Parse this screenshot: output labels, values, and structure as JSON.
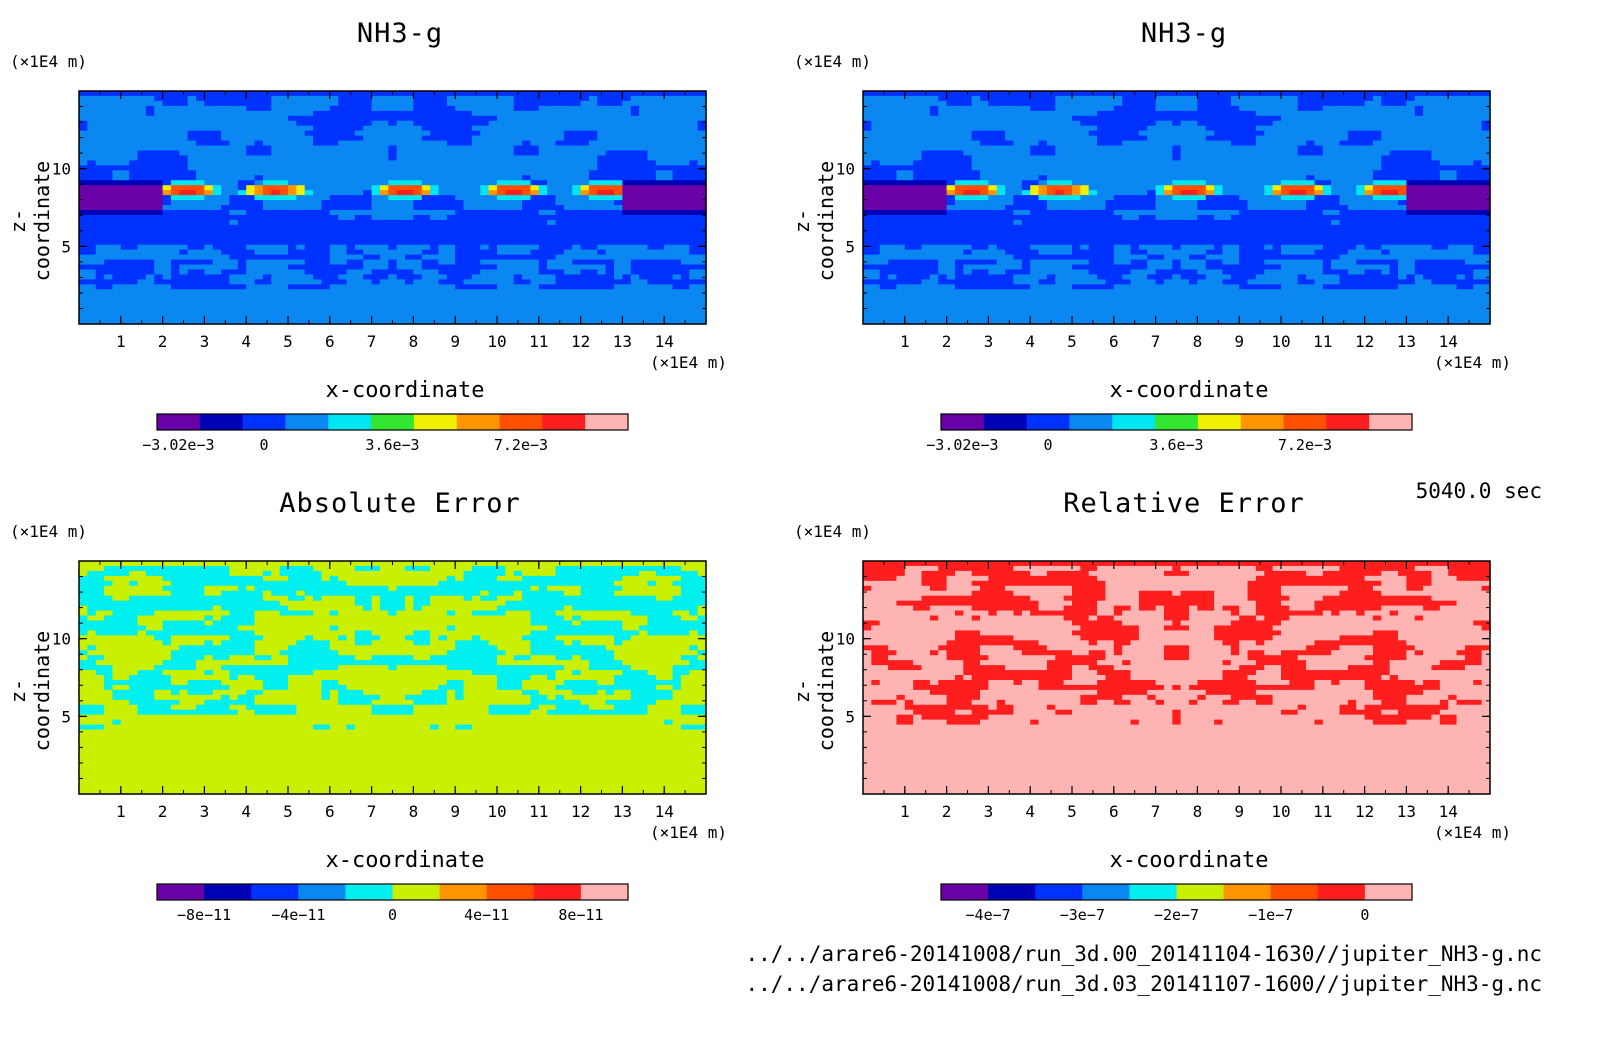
{
  "panels": [
    {
      "title": "NH3-g",
      "xlabel": "x-coordinate",
      "zlabel": "z-coordinate",
      "x_unit": "(×1E4 m)",
      "z_unit": "(×1E4 m)",
      "x_ticks": [
        "1",
        "2",
        "3",
        "4",
        "5",
        "6",
        "7",
        "8",
        "9",
        "10",
        "11",
        "12",
        "13",
        "14"
      ],
      "z_ticks": [
        "5",
        "10"
      ],
      "palette": [
        "#6a00a8",
        "#0000b4",
        "#0032ff",
        "#0a87f0",
        "#00e6f0",
        "#32e632",
        "#f0f000",
        "#ff9600",
        "#ff5000",
        "#ff1e1e",
        "#ffb4b4"
      ],
      "colorbar_labels": [
        "−3.02e−3",
        "0",
        "3.6e−3",
        "7.2e−3"
      ],
      "colorbar_label_slots": [
        0.5,
        2.5,
        5.5,
        8.5
      ],
      "field": "nh3"
    },
    {
      "title": "NH3-g",
      "xlabel": "x-coordinate",
      "zlabel": "z-coordinate",
      "x_unit": "(×1E4 m)",
      "z_unit": "(×1E4 m)",
      "x_ticks": [
        "1",
        "2",
        "3",
        "4",
        "5",
        "6",
        "7",
        "8",
        "9",
        "10",
        "11",
        "12",
        "13",
        "14"
      ],
      "z_ticks": [
        "5",
        "10"
      ],
      "palette": [
        "#6a00a8",
        "#0000b4",
        "#0032ff",
        "#0a87f0",
        "#00e6f0",
        "#32e632",
        "#f0f000",
        "#ff9600",
        "#ff5000",
        "#ff1e1e",
        "#ffb4b4"
      ],
      "colorbar_labels": [
        "−3.02e−3",
        "0",
        "3.6e−3",
        "7.2e−3"
      ],
      "colorbar_label_slots": [
        0.5,
        2.5,
        5.5,
        8.5
      ],
      "field": "nh3"
    },
    {
      "title": "Absolute Error",
      "xlabel": "x-coordinate",
      "zlabel": "z-coordinate",
      "x_unit": "(×1E4 m)",
      "z_unit": "(×1E4 m)",
      "x_ticks": [
        "1",
        "2",
        "3",
        "4",
        "5",
        "6",
        "7",
        "8",
        "9",
        "10",
        "11",
        "12",
        "13",
        "14"
      ],
      "z_ticks": [
        "5",
        "10"
      ],
      "palette": [
        "#6a00a8",
        "#0000b4",
        "#0032ff",
        "#0a87f0",
        "#00f0f0",
        "#c8f000",
        "#ff9600",
        "#ff5000",
        "#ff1e1e",
        "#ffb4b4"
      ],
      "colorbar_labels": [
        "−8e−11",
        "−4e−11",
        "0",
        "4e−11",
        "8e−11"
      ],
      "colorbar_label_slots": [
        1,
        3,
        5,
        7,
        9
      ],
      "field": "abs"
    },
    {
      "title": "Relative Error",
      "xlabel": "x-coordinate",
      "zlabel": "z-coordinate",
      "x_unit": "(×1E4 m)",
      "z_unit": "(×1E4 m)",
      "x_ticks": [
        "1",
        "2",
        "3",
        "4",
        "5",
        "6",
        "7",
        "8",
        "9",
        "10",
        "11",
        "12",
        "13",
        "14"
      ],
      "z_ticks": [
        "5",
        "10"
      ],
      "palette": [
        "#6a00a8",
        "#0000b4",
        "#0032ff",
        "#0a87f0",
        "#00f0f0",
        "#c8f000",
        "#ff9600",
        "#ff5000",
        "#ff1e1e",
        "#ffb4b4"
      ],
      "colorbar_labels": [
        "−4e−7",
        "−3e−7",
        "−2e−7",
        "−1e−7",
        "0"
      ],
      "colorbar_label_slots": [
        1,
        3,
        5,
        7,
        9
      ],
      "field": "rel"
    }
  ],
  "time_label": "5040.0 sec",
  "files": [
    "../../arare6-20141008/run_3d.00_20141104-1630//jupiter_NH3-g.nc",
    "../../arare6-20141008/run_3d.03_20141107-1600//jupiter_NH3-g.nc"
  ],
  "chart_data": [
    {
      "type": "heatmap",
      "title": "NH3-g",
      "xlabel": "x-coordinate",
      "ylabel": "z-coordinate",
      "xlim": [
        0,
        15
      ],
      "ylim": [
        0,
        15
      ],
      "colorbar": [
        "−3.02e−3",
        "0",
        "3.6e−3",
        "7.2e−3"
      ]
    },
    {
      "type": "heatmap",
      "title": "NH3-g",
      "xlabel": "x-coordinate",
      "ylabel": "z-coordinate",
      "xlim": [
        0,
        15
      ],
      "ylim": [
        0,
        15
      ],
      "colorbar": [
        "−3.02e−3",
        "0",
        "3.6e−3",
        "7.2e−3"
      ]
    },
    {
      "type": "heatmap",
      "title": "Absolute Error",
      "xlabel": "x-coordinate",
      "ylabel": "z-coordinate",
      "xlim": [
        0,
        15
      ],
      "ylim": [
        0,
        15
      ],
      "colorbar": [
        "−8e−11",
        "−4e−11",
        "0",
        "4e−11",
        "8e−11"
      ]
    },
    {
      "type": "heatmap",
      "title": "Relative Error",
      "xlabel": "x-coordinate",
      "ylabel": "z-coordinate",
      "xlim": [
        0,
        15
      ],
      "ylim": [
        0,
        15
      ],
      "colorbar": [
        "−4e−7",
        "−3e−7",
        "−2e−7",
        "−1e−7",
        "0"
      ]
    }
  ]
}
